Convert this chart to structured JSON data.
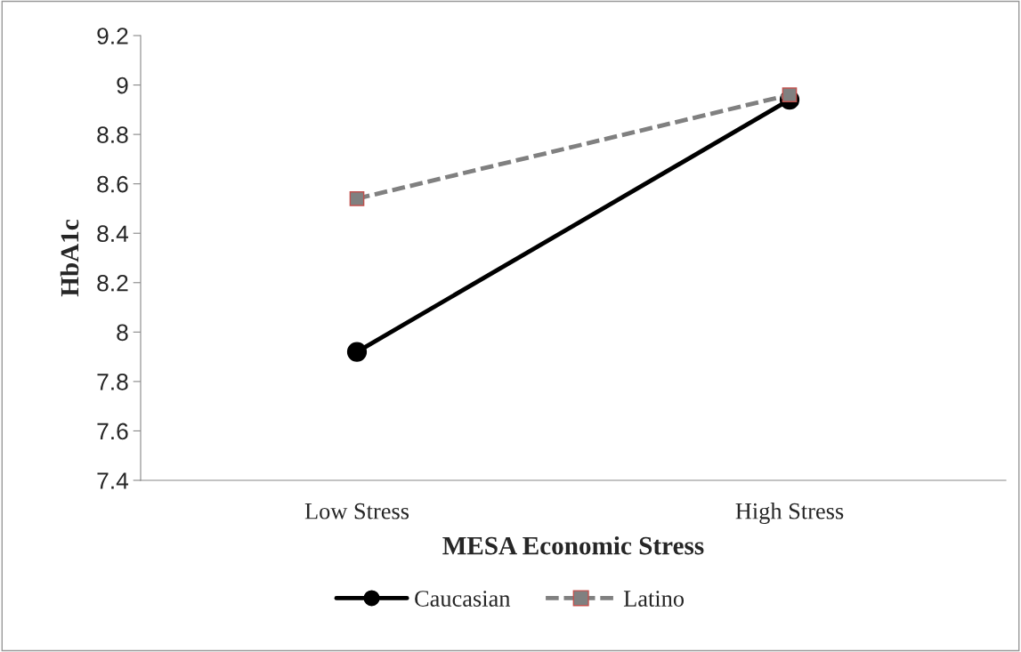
{
  "chart_data": {
    "type": "line",
    "xlabel": "MESA Economic Stress",
    "ylabel": "HbA1c",
    "categories": [
      "Low Stress",
      "High Stress"
    ],
    "series": [
      {
        "name": "Caucasian",
        "color": "#000000",
        "values": [
          7.92,
          8.94
        ],
        "marker": "circle",
        "line_style": "solid"
      },
      {
        "name": "Latino",
        "color": "#808080",
        "values": [
          8.54,
          8.96
        ],
        "marker": "square",
        "line_style": "dashed"
      }
    ],
    "ylim": [
      7.4,
      9.2
    ],
    "yticks": [
      7.4,
      7.6,
      7.8,
      8,
      8.2,
      8.4,
      8.6,
      8.8,
      9,
      9.2
    ],
    "grid": false,
    "legend": "bottom"
  }
}
